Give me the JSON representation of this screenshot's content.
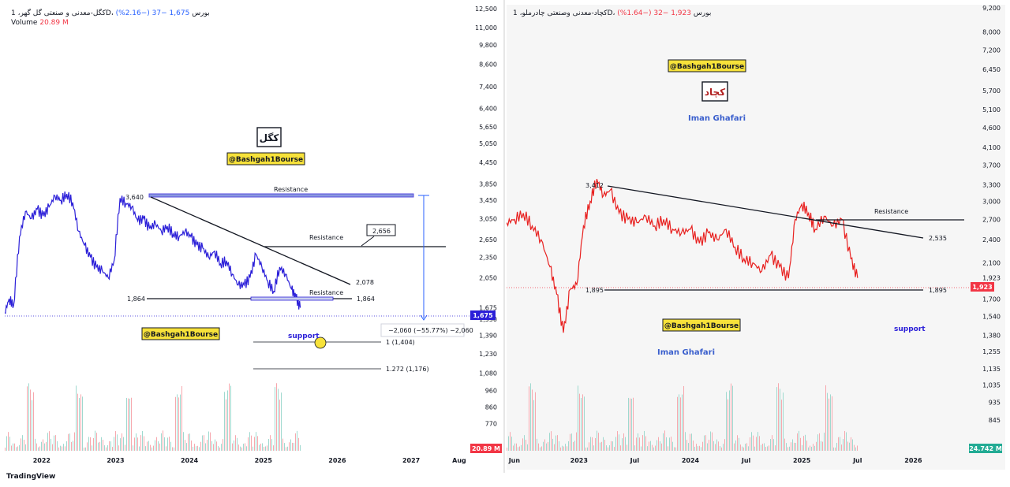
{
  "charts": {
    "left": {
      "header": {
        "title": "کگل-معدنی و صنعتی گل گهر، 1D، بورس",
        "last": "1,675",
        "change": "−37 (−2.16%)",
        "volume_label": "Volume",
        "volume_value": "20.89 M"
      },
      "badges": {
        "symbol": "کگل",
        "channel_top": "@Bashgah1Bourse",
        "channel_mid": "@Bashgah1Bourse"
      },
      "annotations": {
        "resistance_top": "Resistance",
        "resistance_mid": "Resistance",
        "resistance_low": "Resistance",
        "peak_label": "3,640",
        "trend_end": "2,078",
        "callout": "2,656",
        "support_left": "1,864",
        "support_right": "1,864",
        "support_text": "support",
        "measure": "−2,060 (−55.77%) −2,060",
        "fib1": "1 (1,404)",
        "fib2": "1.272 (1,176)",
        "last_tag": "1,675",
        "vol_tag": "20.89 M"
      }
    },
    "right": {
      "header": {
        "title": "کچاد-معدنی وصنعتی چادرملو، 1D، بورس",
        "last": "1,923",
        "change": "−32 (−1.64%)"
      },
      "badges": {
        "symbol": "کچاد",
        "channel_top": "@Bashgah1Bourse",
        "channel_mid": "@Bashgah1Bourse",
        "author_top": "Iman Ghafari",
        "author_mid": "Iman Ghafari"
      },
      "annotations": {
        "resistance": "Resistance",
        "peak_label": "3,412",
        "trend_end": "2,535",
        "support_left": "1,895",
        "support_right": "1,895",
        "support_text": "support",
        "last_tag": "1,923",
        "vol_tag": "24.742 M"
      }
    },
    "brand": "TradingView"
  },
  "chart_data": [
    {
      "type": "line",
      "name": "kogol",
      "y_scale": "log",
      "ylim": [
        690,
        12500
      ],
      "xlim": [
        2021.5,
        2027.8
      ],
      "y_ticks": [
        "12,500",
        "11,000",
        "9,800",
        "8,600",
        "7,400",
        "6,400",
        "5,650",
        "5,050",
        "4,450",
        "3,850",
        "3,450",
        "3,050",
        "2,650",
        "2,350",
        "2,050",
        "1,675",
        "1,550",
        "1,390",
        "1,230",
        "1,080",
        "960",
        "860",
        "770"
      ],
      "y_tick_values": [
        12500,
        11000,
        9800,
        8600,
        7400,
        6400,
        5650,
        5050,
        4450,
        3850,
        3450,
        3050,
        2650,
        2350,
        2050,
        1675,
        1550,
        1390,
        1230,
        1080,
        960,
        860,
        770
      ],
      "x_ticks": [
        "2022",
        "2023",
        "2024",
        "2025",
        "2026",
        "2027",
        "Aug"
      ],
      "x_tick_values": [
        2022,
        2023,
        2024,
        2025,
        2026,
        2027,
        2027.65
      ],
      "color": "#2b1fd8",
      "series": [
        {
          "x": [
            2021.5,
            2021.56,
            2021.62,
            2021.7,
            2021.78,
            2021.86,
            2021.94,
            2022.02,
            2022.1,
            2022.18,
            2022.26,
            2022.34,
            2022.42,
            2022.5,
            2022.58,
            2022.66,
            2022.74,
            2022.82,
            2022.9,
            2022.98,
            2023.06,
            2023.14,
            2023.22,
            2023.3,
            2023.38,
            2023.46,
            2023.54,
            2023.62,
            2023.7,
            2023.78,
            2023.86,
            2023.94,
            2024.02,
            2024.1,
            2024.18,
            2024.26,
            2024.34,
            2024.42,
            2024.5,
            2024.58,
            2024.66,
            2024.74,
            2024.82,
            2024.9,
            2024.98,
            2025.06,
            2025.14,
            2025.22,
            2025.3,
            2025.38,
            2025.44,
            2025.5
          ],
          "y": [
            1620,
            1780,
            1700,
            2700,
            3200,
            3050,
            3250,
            3100,
            3300,
            3550,
            3450,
            3600,
            3400,
            2800,
            2550,
            2350,
            2200,
            2150,
            2050,
            2300,
            3500,
            3380,
            3300,
            3000,
            3050,
            2850,
            2950,
            2800,
            2900,
            2750,
            2700,
            2800,
            2700,
            2550,
            2500,
            2350,
            2450,
            2250,
            2300,
            2100,
            1950,
            1950,
            2050,
            2400,
            2200,
            2000,
            1870,
            2200,
            2100,
            1900,
            1800,
            1675
          ]
        }
      ]
    },
    {
      "type": "line",
      "name": "kachad",
      "y_scale": "log",
      "ylim": [
        760,
        9200
      ],
      "xlim": [
        2022.35,
        2026.5
      ],
      "y_ticks": [
        "9,200",
        "8,000",
        "7,200",
        "6,450",
        "5,700",
        "5,100",
        "4,600",
        "4,100",
        "3,700",
        "3,300",
        "3,000",
        "2,700",
        "2,400",
        "2,100",
        "1,923",
        "1,700",
        "1,540",
        "1,380",
        "1,255",
        "1,135",
        "1,035",
        "935",
        "845"
      ],
      "y_tick_values": [
        9200,
        8000,
        7200,
        6450,
        5700,
        5100,
        4600,
        4100,
        3700,
        3300,
        3000,
        2700,
        2400,
        2100,
        1923,
        1700,
        1540,
        1380,
        1255,
        1135,
        1035,
        935,
        845
      ],
      "x_ticks": [
        "Jun",
        "2023",
        "Jul",
        "2024",
        "Jul",
        "2025",
        "Jul",
        "2026"
      ],
      "x_tick_values": [
        2022.42,
        2023.0,
        2023.5,
        2024.0,
        2024.5,
        2025.0,
        2025.5,
        2026.0
      ],
      "color": "#e8201f",
      "series": [
        {
          "x": [
            2022.35,
            2022.42,
            2022.5,
            2022.58,
            2022.66,
            2022.74,
            2022.8,
            2022.86,
            2022.92,
            2022.98,
            2023.04,
            2023.1,
            2023.16,
            2023.22,
            2023.28,
            2023.36,
            2023.44,
            2023.52,
            2023.6,
            2023.68,
            2023.76,
            2023.84,
            2023.92,
            2024.0,
            2024.08,
            2024.16,
            2024.24,
            2024.32,
            2024.4,
            2024.48,
            2024.56,
            2024.64,
            2024.72,
            2024.8,
            2024.88,
            2024.94,
            2025.0,
            2025.06,
            2025.12,
            2025.2,
            2025.28,
            2025.36,
            2025.44,
            2025.5
          ],
          "y": [
            2650,
            2700,
            2800,
            2600,
            2400,
            2050,
            1750,
            1400,
            1800,
            1850,
            2600,
            3000,
            3412,
            3100,
            3200,
            2800,
            2700,
            2650,
            2750,
            2600,
            2700,
            2550,
            2500,
            2550,
            2350,
            2500,
            2400,
            2550,
            2300,
            2150,
            2100,
            2000,
            2200,
            2050,
            1920,
            2700,
            2950,
            2800,
            2550,
            2750,
            2600,
            2700,
            2150,
            1923
          ]
        }
      ]
    }
  ]
}
